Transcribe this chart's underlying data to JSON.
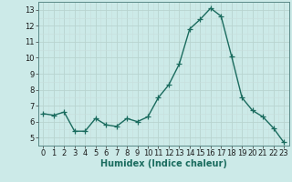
{
  "x": [
    0,
    1,
    2,
    3,
    4,
    5,
    6,
    7,
    8,
    9,
    10,
    11,
    12,
    13,
    14,
    15,
    16,
    17,
    18,
    19,
    20,
    21,
    22,
    23
  ],
  "y": [
    6.5,
    6.4,
    6.6,
    5.4,
    5.4,
    6.2,
    5.8,
    5.7,
    6.2,
    6.0,
    6.3,
    7.5,
    8.3,
    9.6,
    11.8,
    12.4,
    13.1,
    12.6,
    10.1,
    7.5,
    6.7,
    6.3,
    5.6,
    4.7
  ],
  "line_color": "#1a6b5e",
  "bg_color": "#cceae8",
  "grid_major_color": "#b8d4d0",
  "grid_minor_color": "#c8dedd",
  "xlabel": "Humidex (Indice chaleur)",
  "ylim": [
    4.5,
    13.5
  ],
  "yticks": [
    5,
    6,
    7,
    8,
    9,
    10,
    11,
    12,
    13
  ],
  "xticks": [
    0,
    1,
    2,
    3,
    4,
    5,
    6,
    7,
    8,
    9,
    10,
    11,
    12,
    13,
    14,
    15,
    16,
    17,
    18,
    19,
    20,
    21,
    22,
    23
  ],
  "marker": "+",
  "markersize": 4,
  "linewidth": 1.0,
  "xlabel_fontsize": 7,
  "tick_fontsize": 6,
  "label_color": "#1a6b5e"
}
